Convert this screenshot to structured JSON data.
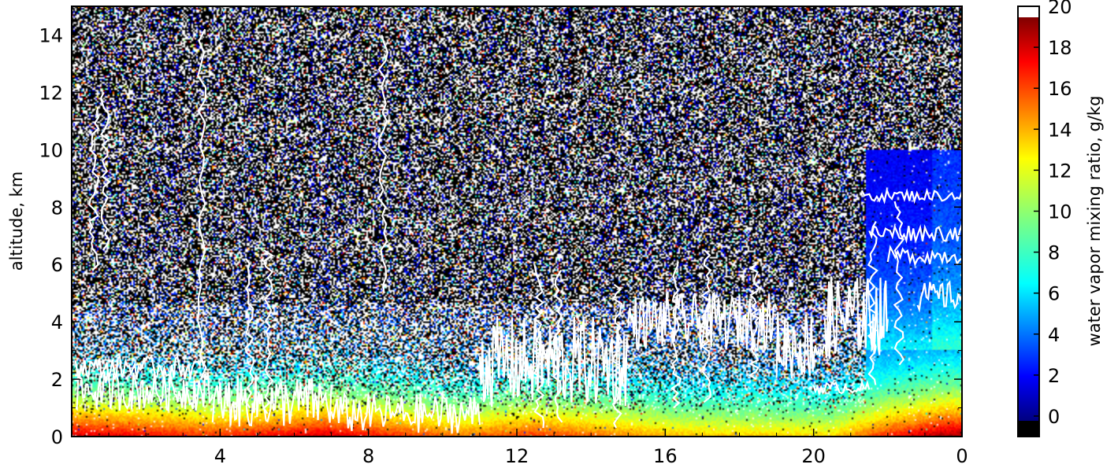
{
  "chart_data": {
    "type": "heatmap",
    "title": "",
    "xlabel": "",
    "ylabel": "altitude, km",
    "x_ticks": [
      "4",
      "8",
      "12",
      "16",
      "20",
      "0"
    ],
    "y_ticks": [
      "0",
      "2",
      "4",
      "6",
      "8",
      "10",
      "12",
      "14"
    ],
    "ylim": [
      0,
      15
    ],
    "colorbar": {
      "label": "water vapor mixing ratio, g/kg",
      "range": [
        -1,
        20
      ],
      "ticks": [
        "0",
        "2",
        "4",
        "6",
        "8",
        "10",
        "12",
        "14",
        "16",
        "18",
        "20"
      ],
      "colormap": "jet",
      "overflow_color": "#ffffff",
      "underflow_color": "#000000"
    },
    "noise_limit_km": 4.6,
    "contour_color": "#ffffff",
    "surface_profile": [
      {
        "x": 0.2,
        "q": 17.5
      },
      {
        "x": 3.8,
        "q": 15.5
      },
      {
        "x": 6.8,
        "q": 17.5
      },
      {
        "x": 10.5,
        "q": 14.0
      },
      {
        "x": 12.5,
        "q": 15.5
      },
      {
        "x": 16.5,
        "q": 12.5
      },
      {
        "x": 20.5,
        "q": 12.0
      },
      {
        "x": 21.8,
        "q": 15.5
      },
      {
        "x": 23.5,
        "q": 18.5
      }
    ],
    "dry_upper_segments": [
      {
        "x_start": 21.4,
        "x_end": 24.0,
        "z_top": 10.0
      }
    ]
  }
}
